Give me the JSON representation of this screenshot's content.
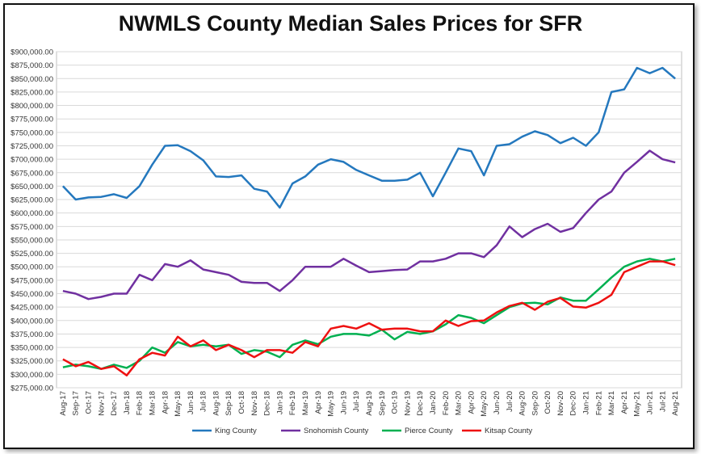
{
  "chart_data": {
    "type": "line",
    "title": "NWMLS County Median Sales Prices for SFR",
    "xlabel": "",
    "ylabel": "",
    "ylim": [
      275000,
      900000
    ],
    "ytick_labels": [
      "$275,000.00",
      "$300,000.00",
      "$325,000.00",
      "$350,000.00",
      "$375,000.00",
      "$400,000.00",
      "$425,000.00",
      "$450,000.00",
      "$475,000.00",
      "$500,000.00",
      "$525,000.00",
      "$550,000.00",
      "$575,000.00",
      "$600,000.00",
      "$625,000.00",
      "$650,000.00",
      "$675,000.00",
      "$700,000.00",
      "$725,000.00",
      "$750,000.00",
      "$775,000.00",
      "$800,000.00",
      "$825,000.00",
      "$850,000.00",
      "$875,000.00",
      "$900,000.00"
    ],
    "grid": true,
    "legend_position": "bottom",
    "categories": [
      "Aug-17",
      "Sep-17",
      "Oct-17",
      "Nov-17",
      "Dec-17",
      "Jan-18",
      "Feb-18",
      "Mar-18",
      "Apr-18",
      "May-18",
      "Jun-18",
      "Jul-18",
      "Aug-18",
      "Sep-18",
      "Oct-18",
      "Nov-18",
      "Dec-18",
      "Jan-19",
      "Feb-19",
      "Mar-19",
      "Apr-19",
      "May-19",
      "Jun-19",
      "Jul-19",
      "Aug-19",
      "Sep-19",
      "Oct-19",
      "Nov-19",
      "Dec-19",
      "Jan-20",
      "Feb-20",
      "Mar-20",
      "Apr-20",
      "May-20",
      "Jun-20",
      "Jul-20",
      "Aug-20",
      "Sep-20",
      "Oct-20",
      "Nov-20",
      "Dec-20",
      "Jan-21",
      "Feb-21",
      "Mar-21",
      "Apr-21",
      "May-21",
      "Jun-21",
      "Jul-21",
      "Aug-21"
    ],
    "series": [
      {
        "name": "King County",
        "color": "#2478be",
        "values": [
          650000,
          625000,
          629000,
          630000,
          635000,
          628000,
          650000,
          690000,
          725000,
          726000,
          715000,
          698000,
          668000,
          667000,
          670000,
          645000,
          640000,
          610000,
          655000,
          668000,
          690000,
          700000,
          695000,
          680000,
          670000,
          660000,
          660000,
          662000,
          675000,
          631000,
          675000,
          720000,
          715000,
          670000,
          725000,
          728000,
          742000,
          752000,
          745000,
          730000,
          740000,
          725000,
          750000,
          825000,
          830000,
          870000,
          860000,
          870000,
          850000
        ]
      },
      {
        "name": "Snohomish County",
        "color": "#7030a0",
        "values": [
          455000,
          450000,
          440000,
          444000,
          450000,
          450000,
          485000,
          475000,
          505000,
          500000,
          512000,
          495000,
          490000,
          485000,
          472000,
          470000,
          470000,
          455000,
          475000,
          500000,
          500000,
          500000,
          515000,
          502000,
          490000,
          492000,
          494000,
          495000,
          510000,
          510000,
          515000,
          525000,
          525000,
          518000,
          540000,
          575000,
          555000,
          570000,
          580000,
          565000,
          572000,
          600000,
          625000,
          640000,
          675000,
          695000,
          716000,
          700000,
          694000
        ]
      },
      {
        "name": "Pierce County",
        "color": "#00b050",
        "values": [
          313000,
          318000,
          315000,
          310000,
          318000,
          312000,
          325000,
          350000,
          340000,
          360000,
          352000,
          355000,
          352000,
          355000,
          338000,
          345000,
          342000,
          332000,
          355000,
          363000,
          356000,
          370000,
          375000,
          375000,
          372000,
          383000,
          365000,
          379000,
          375000,
          380000,
          393000,
          410000,
          405000,
          395000,
          410000,
          425000,
          432000,
          433000,
          430000,
          443000,
          437000,
          437000,
          458000,
          480000,
          500000,
          510000,
          515000,
          510000,
          515000
        ]
      },
      {
        "name": "Kitsap County",
        "color": "#ee1111",
        "values": [
          328000,
          315000,
          323000,
          310000,
          315000,
          298000,
          328000,
          340000,
          335000,
          370000,
          352000,
          363000,
          345000,
          355000,
          345000,
          332000,
          345000,
          345000,
          340000,
          360000,
          352000,
          385000,
          390000,
          385000,
          395000,
          383000,
          385000,
          385000,
          380000,
          380000,
          400000,
          390000,
          399000,
          400000,
          415000,
          427000,
          433000,
          420000,
          435000,
          442000,
          426000,
          424000,
          433000,
          448000,
          490000,
          500000,
          510000,
          510000,
          503000
        ]
      }
    ]
  }
}
